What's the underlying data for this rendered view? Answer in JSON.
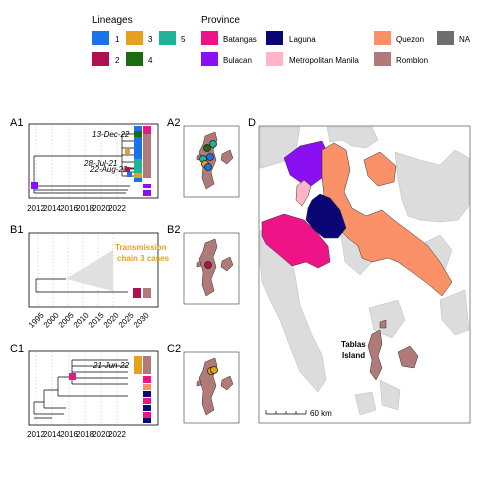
{
  "chart_data": {
    "type": "multi-panel figure (phylogenetic trees and maps)",
    "legend": {
      "lineages_title": "Lineages",
      "lineages": [
        {
          "label": "1",
          "color": "#1a73e8"
        },
        {
          "label": "2",
          "color": "#b0104f"
        },
        {
          "label": "3",
          "color": "#e6a020"
        },
        {
          "label": "4",
          "color": "#1b6b10"
        },
        {
          "label": "5",
          "color": "#21b29a"
        }
      ],
      "province_title": "Province",
      "provinces": [
        {
          "label": "Batangas",
          "color": "#ee1487"
        },
        {
          "label": "Bulacan",
          "color": "#8a0ff2"
        },
        {
          "label": "Laguna",
          "color": "#0a0675"
        },
        {
          "label": "Metropolitan Manila",
          "color": "#ffb5c5"
        },
        {
          "label": "Quezon",
          "color": "#fa9168"
        },
        {
          "label": "Romblon",
          "color": "#b07a78"
        },
        {
          "label": "NA",
          "color": "#6e6e6e"
        }
      ]
    },
    "panels": {
      "A1": {
        "label": "A1",
        "x_ticks": [
          2012,
          2014,
          2016,
          2018,
          2020,
          2022
        ],
        "annotations": [
          "13-Dec-22",
          "28-Jul-21",
          "22-Aug-22"
        ]
      },
      "A2": {
        "label": "A2"
      },
      "B1": {
        "label": "B1",
        "x_ticks": [
          1995,
          2000,
          2005,
          2010,
          2015,
          2020,
          2025,
          2030
        ],
        "annotation_line1": "Transmission",
        "annotation_line2": "chain 3 cases"
      },
      "B2": {
        "label": "B2"
      },
      "C1": {
        "label": "C1",
        "x_ticks": [
          2012,
          2014,
          2016,
          2018,
          2020,
          2022
        ],
        "annotations": [
          "21-Jun-22"
        ]
      },
      "C2": {
        "label": "C2"
      },
      "D": {
        "label": "D",
        "place_label_1": "Tablas",
        "place_label_2": "Island",
        "scale_label": "60 km"
      }
    }
  }
}
